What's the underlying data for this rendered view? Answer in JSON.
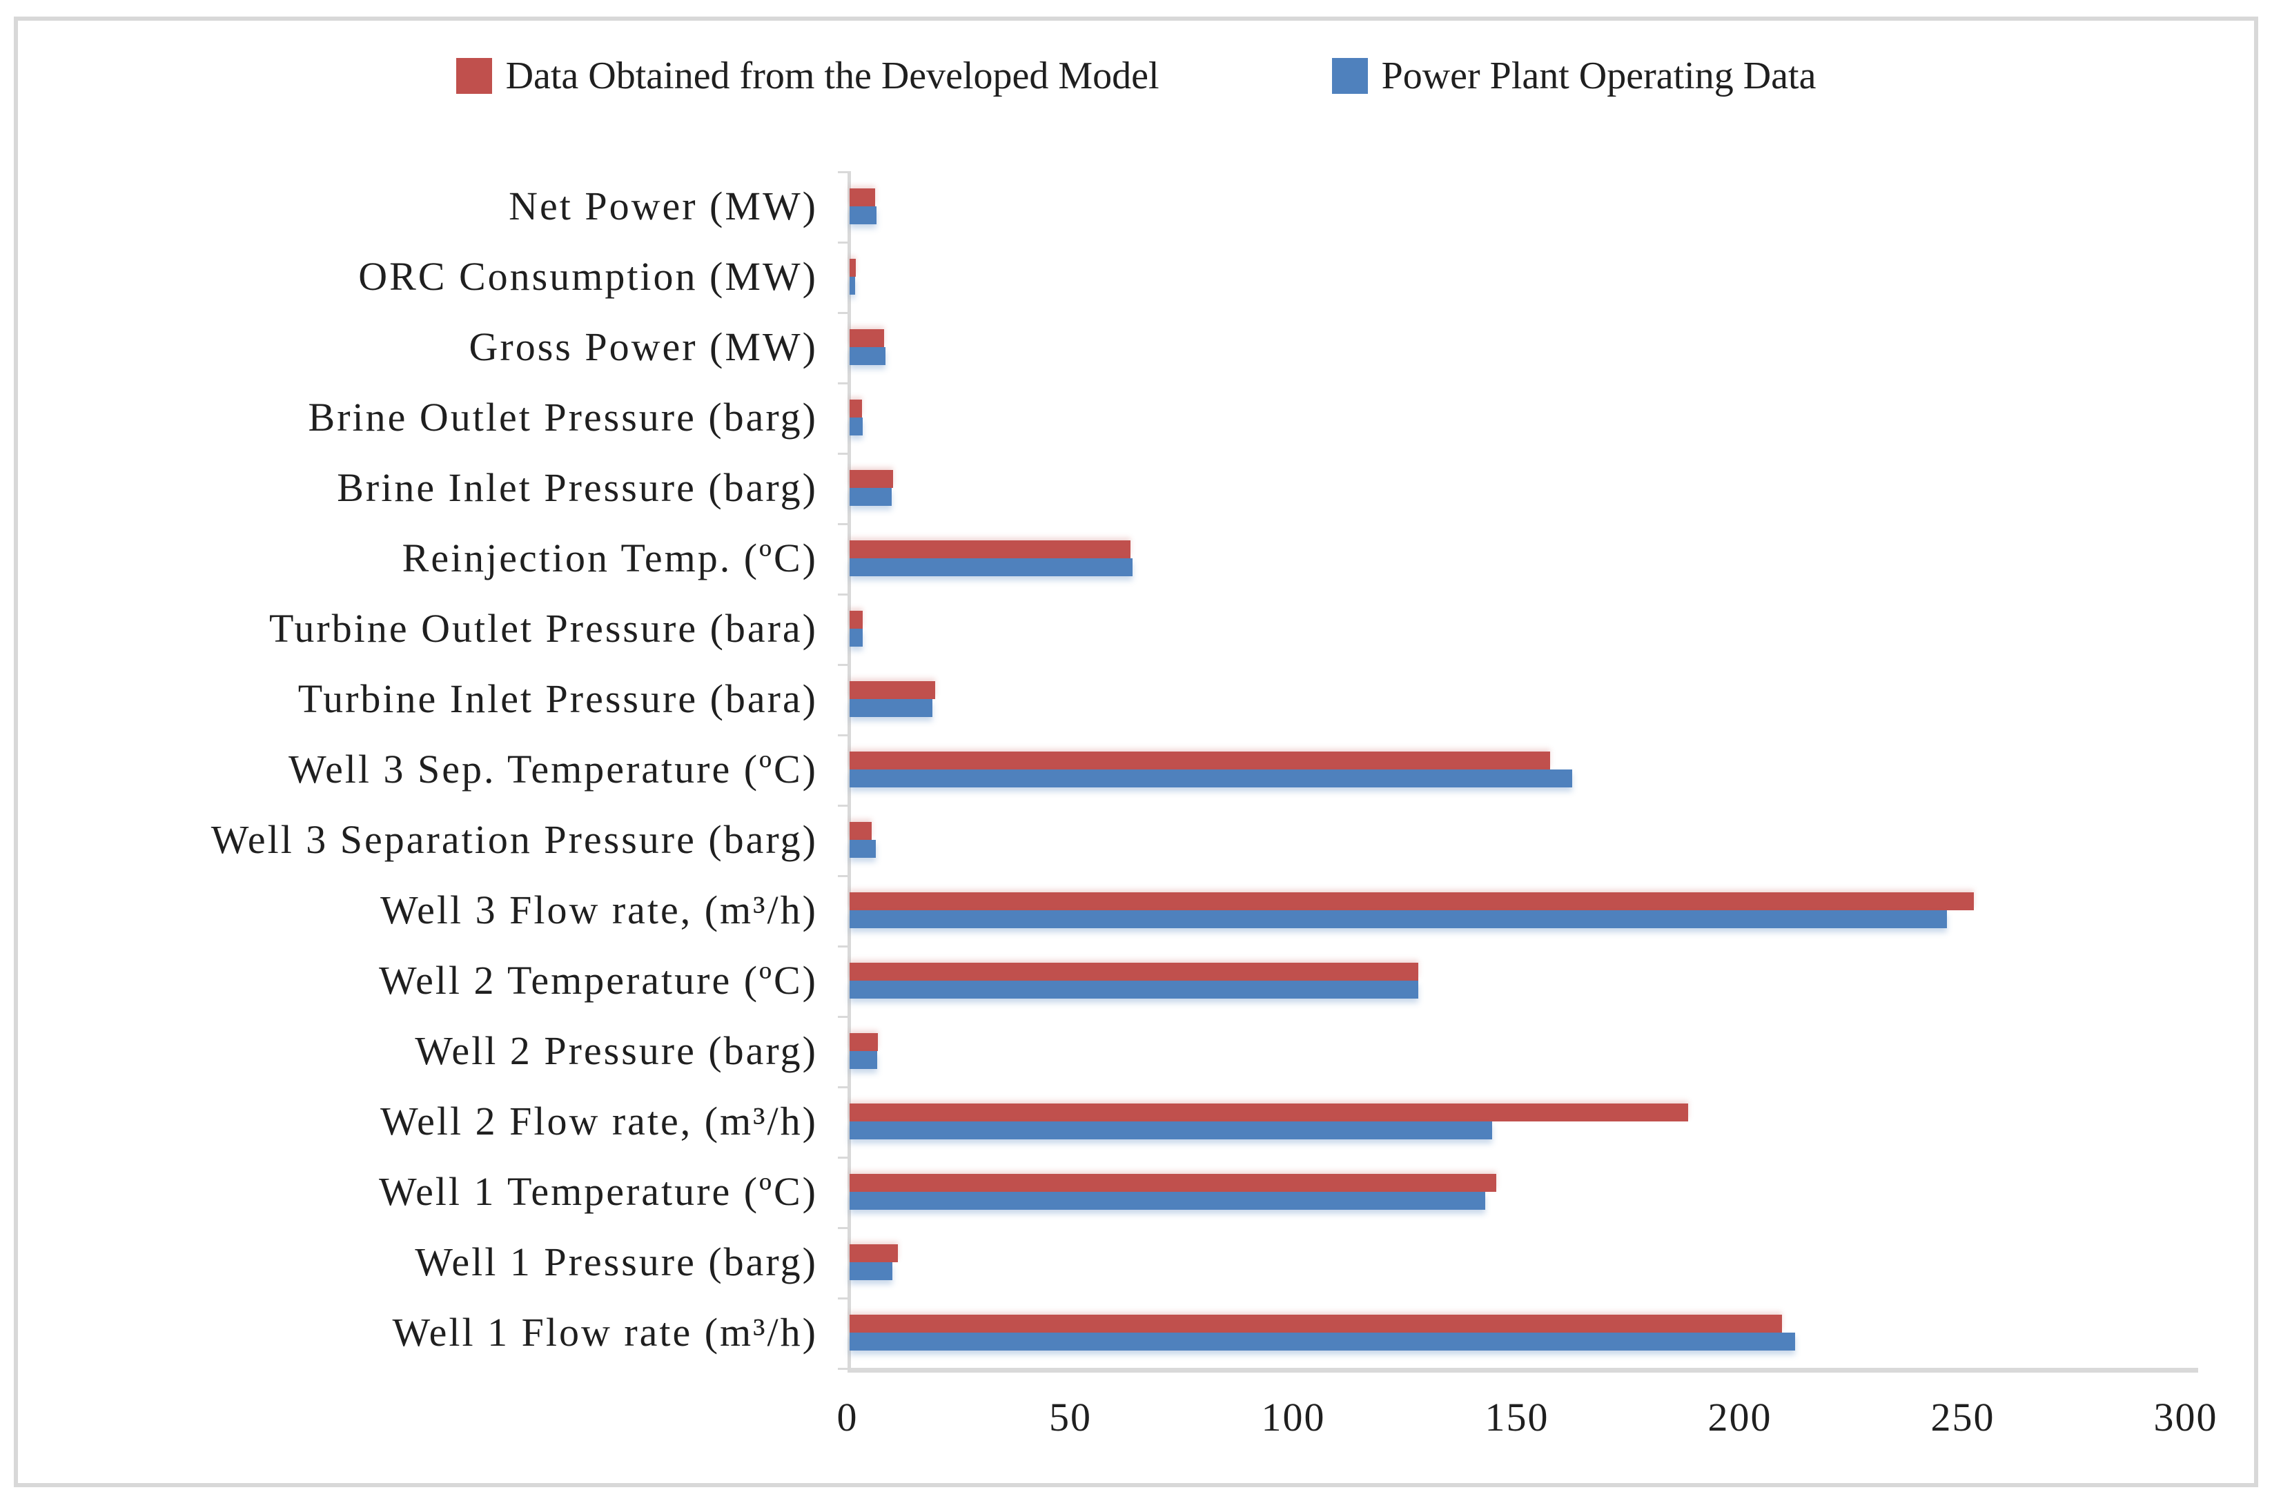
{
  "legend": {
    "model_label": "Data Obtained from the Developed Model",
    "plant_label": "Power Plant Operating Data"
  },
  "colors": {
    "model": "#C0504D",
    "plant": "#4F81BD",
    "axis": "#d9d9d9",
    "text": "#1f1f1f",
    "frame_border": "#d8d8d8"
  },
  "chart_data": {
    "type": "bar",
    "orientation": "horizontal",
    "title": "",
    "xlabel": "",
    "ylabel": "",
    "xlim": [
      0,
      300
    ],
    "xticks": [
      0,
      50,
      100,
      150,
      200,
      250,
      300
    ],
    "grid": false,
    "legend_position": "top-center",
    "categories": [
      "Net Power (MW)",
      "ORC Consumption (MW)",
      "Gross Power (MW)",
      "Brine Outlet Pressure (barg)",
      "Brine Inlet Pressure (barg)",
      "Reinjection Temp. (ºC)",
      "Turbine Outlet Pressure (bara)",
      "Turbine Inlet Pressure (bara)",
      "Well 3 Sep. Temperature (ºC)",
      "Well 3 Separation Pressure (barg)",
      "Well 3 Flow rate, (m³/h)",
      "Well 2 Temperature (ºC)",
      "Well 2 Pressure (barg)",
      "Well 2 Flow rate, (m³/h)",
      "Well 1 Temperature (ºC)",
      "Well 1 Pressure (barg)",
      "Well 1 Flow rate (m³/h)"
    ],
    "series": [
      {
        "name": "Data Obtained from the Developed Model",
        "color": "#C0504D",
        "values": [
          5.8,
          1.4,
          7.7,
          2.8,
          9.7,
          63.0,
          2.9,
          19.2,
          157.0,
          5.0,
          252.0,
          127.5,
          6.4,
          188.0,
          145.0,
          10.9,
          209.0
        ]
      },
      {
        "name": "Power Plant Operating Data",
        "color": "#4F81BD",
        "values": [
          6.0,
          1.2,
          8.0,
          2.9,
          9.5,
          63.5,
          3.0,
          18.6,
          162.0,
          5.9,
          246.0,
          127.5,
          6.2,
          144.0,
          142.5,
          9.6,
          212.0
        ]
      }
    ]
  }
}
